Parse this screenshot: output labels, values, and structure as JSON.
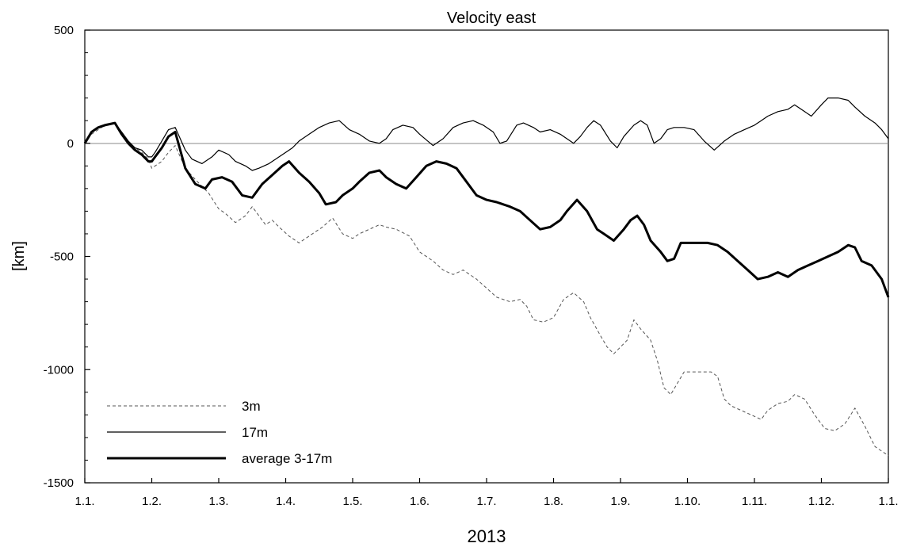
{
  "chart_data": {
    "type": "line",
    "title": "Velocity east",
    "xlabel": "2013",
    "ylabel": "[km]",
    "ylim": [
      -1500,
      500
    ],
    "xlim": [
      0,
      12
    ],
    "yticks": [
      500,
      0,
      -500,
      -1000,
      -1500
    ],
    "ytick_labels": [
      "500",
      "0",
      "-500",
      "-1000",
      "-1500"
    ],
    "xticks": [
      0,
      1,
      2,
      3,
      4,
      5,
      6,
      7,
      8,
      9,
      10,
      11,
      12
    ],
    "xtick_labels": [
      "1.1.",
      "1.2.",
      "1.3.",
      "1.4.",
      "1.5.",
      "1.6.",
      "1.7.",
      "1.8.",
      "1.9.",
      "1.10.",
      "1.11.",
      "1.12.",
      "1.1."
    ],
    "grid": false,
    "zero_line": true,
    "legend_position": "bottom-left",
    "series": [
      {
        "name": "3m",
        "style": "dashed",
        "color": "#555555",
        "x": [
          0,
          0.1,
          0.2,
          0.3,
          0.45,
          0.55,
          0.65,
          0.75,
          0.85,
          0.95,
          1.0,
          1.05,
          1.15,
          1.25,
          1.35,
          1.5,
          1.65,
          1.85,
          2.0,
          2.1,
          2.25,
          2.4,
          2.5,
          2.7,
          2.8,
          2.9,
          3.05,
          3.2,
          3.4,
          3.55,
          3.7,
          3.85,
          4.0,
          4.1,
          4.25,
          4.4,
          4.5,
          4.65,
          4.85,
          5.0,
          5.2,
          5.35,
          5.5,
          5.65,
          5.85,
          6.0,
          6.15,
          6.35,
          6.5,
          6.6,
          6.7,
          6.85,
          7.0,
          7.15,
          7.3,
          7.45,
          7.55,
          7.7,
          7.8,
          7.9,
          8.0,
          8.1,
          8.2,
          8.3,
          8.45,
          8.55,
          8.65,
          8.75,
          8.85,
          8.95,
          9.05,
          9.2,
          9.35,
          9.45,
          9.55,
          9.65,
          9.8,
          9.95,
          10.1,
          10.2,
          10.35,
          10.5,
          10.6,
          10.75,
          10.9,
          11.05,
          11.2,
          11.35,
          11.5,
          11.65,
          11.8,
          11.95,
          12.0
        ],
        "values": [
          0,
          40,
          60,
          80,
          90,
          50,
          10,
          -20,
          -40,
          -70,
          -110,
          -100,
          -80,
          -40,
          -10,
          -110,
          -160,
          -220,
          -290,
          -310,
          -350,
          -320,
          -280,
          -360,
          -340,
          -370,
          -410,
          -440,
          -400,
          -370,
          -330,
          -400,
          -420,
          -400,
          -380,
          -360,
          -370,
          -380,
          -410,
          -480,
          -520,
          -560,
          -580,
          -560,
          -600,
          -640,
          -680,
          -700,
          -690,
          -720,
          -780,
          -790,
          -770,
          -690,
          -660,
          -700,
          -770,
          -850,
          -900,
          -930,
          -900,
          -870,
          -780,
          -820,
          -870,
          -960,
          -1080,
          -1110,
          -1060,
          -1010,
          -1010,
          -1010,
          -1010,
          -1030,
          -1130,
          -1160,
          -1180,
          -1200,
          -1220,
          -1180,
          -1150,
          -1140,
          -1110,
          -1130,
          -1200,
          -1260,
          -1270,
          -1240,
          -1170,
          -1250,
          -1340,
          -1370,
          -1380
        ]
      },
      {
        "name": "17m",
        "style": "thin",
        "color": "#000000",
        "x": [
          0,
          0.1,
          0.2,
          0.3,
          0.45,
          0.55,
          0.65,
          0.75,
          0.85,
          0.95,
          1.0,
          1.05,
          1.15,
          1.25,
          1.35,
          1.5,
          1.6,
          1.75,
          1.9,
          2.0,
          2.15,
          2.25,
          2.4,
          2.5,
          2.6,
          2.75,
          2.9,
          3.0,
          3.1,
          3.2,
          3.35,
          3.5,
          3.65,
          3.8,
          3.95,
          4.1,
          4.25,
          4.4,
          4.5,
          4.6,
          4.75,
          4.9,
          5.0,
          5.2,
          5.35,
          5.5,
          5.65,
          5.8,
          5.95,
          6.1,
          6.2,
          6.3,
          6.45,
          6.55,
          6.7,
          6.8,
          6.95,
          7.1,
          7.3,
          7.4,
          7.5,
          7.6,
          7.7,
          7.85,
          7.95,
          8.05,
          8.2,
          8.3,
          8.4,
          8.5,
          8.6,
          8.7,
          8.8,
          8.95,
          9.1,
          9.25,
          9.4,
          9.55,
          9.7,
          9.85,
          10.0,
          10.1,
          10.2,
          10.35,
          10.5,
          10.6,
          10.75,
          10.85,
          11.0,
          11.1,
          11.25,
          11.4,
          11.5,
          11.65,
          11.8,
          11.9,
          12.0
        ],
        "values": [
          0,
          50,
          70,
          80,
          90,
          50,
          10,
          -20,
          -30,
          -60,
          -60,
          -40,
          10,
          60,
          70,
          -30,
          -70,
          -90,
          -60,
          -30,
          -50,
          -80,
          -100,
          -120,
          -110,
          -90,
          -60,
          -40,
          -20,
          10,
          40,
          70,
          90,
          100,
          60,
          40,
          10,
          0,
          20,
          60,
          80,
          70,
          40,
          -10,
          20,
          70,
          90,
          100,
          80,
          50,
          0,
          10,
          80,
          90,
          70,
          50,
          60,
          40,
          0,
          30,
          70,
          100,
          80,
          10,
          -20,
          30,
          80,
          100,
          80,
          0,
          20,
          60,
          70,
          70,
          60,
          10,
          -30,
          10,
          40,
          60,
          80,
          100,
          120,
          140,
          150,
          170,
          140,
          120,
          170,
          200,
          200,
          190,
          160,
          120,
          90,
          60,
          20
        ]
      },
      {
        "name": "average 3-17m",
        "style": "thick",
        "color": "#000000",
        "x": [
          0,
          0.1,
          0.2,
          0.3,
          0.45,
          0.55,
          0.65,
          0.75,
          0.85,
          0.95,
          1.0,
          1.05,
          1.15,
          1.25,
          1.35,
          1.5,
          1.65,
          1.8,
          1.9,
          2.05,
          2.2,
          2.35,
          2.5,
          2.65,
          2.8,
          2.95,
          3.05,
          3.2,
          3.35,
          3.5,
          3.6,
          3.75,
          3.85,
          4.0,
          4.1,
          4.25,
          4.4,
          4.5,
          4.65,
          4.8,
          4.95,
          5.1,
          5.25,
          5.4,
          5.55,
          5.7,
          5.85,
          6.0,
          6.15,
          6.35,
          6.5,
          6.65,
          6.8,
          6.95,
          7.1,
          7.2,
          7.35,
          7.5,
          7.65,
          7.75,
          7.9,
          8.05,
          8.15,
          8.25,
          8.35,
          8.45,
          8.6,
          8.7,
          8.8,
          8.9,
          9.0,
          9.15,
          9.3,
          9.45,
          9.6,
          9.75,
          9.9,
          10.05,
          10.2,
          10.35,
          10.5,
          10.65,
          10.8,
          10.95,
          11.1,
          11.25,
          11.4,
          11.5,
          11.6,
          11.75,
          11.9,
          12.0
        ],
        "values": [
          0,
          50,
          70,
          80,
          90,
          40,
          0,
          -30,
          -50,
          -80,
          -80,
          -60,
          -20,
          30,
          50,
          -110,
          -180,
          -200,
          -160,
          -150,
          -170,
          -230,
          -240,
          -180,
          -140,
          -100,
          -80,
          -130,
          -170,
          -220,
          -270,
          -260,
          -230,
          -200,
          -170,
          -130,
          -120,
          -150,
          -180,
          -200,
          -150,
          -100,
          -80,
          -90,
          -110,
          -170,
          -230,
          -250,
          -260,
          -280,
          -300,
          -340,
          -380,
          -370,
          -340,
          -300,
          -250,
          -300,
          -380,
          -400,
          -430,
          -380,
          -340,
          -320,
          -360,
          -430,
          -480,
          -520,
          -510,
          -440,
          -440,
          -440,
          -440,
          -450,
          -480,
          -520,
          -560,
          -600,
          -590,
          -570,
          -590,
          -560,
          -540,
          -520,
          -500,
          -480,
          -450,
          -460,
          -520,
          -540,
          -600,
          -680
        ]
      }
    ]
  }
}
